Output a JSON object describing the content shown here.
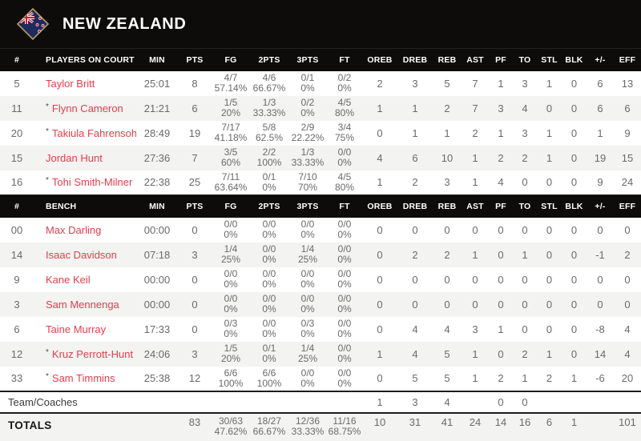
{
  "header": {
    "team_name": "NEW ZEALAND"
  },
  "marks": {
    "starter": "*"
  },
  "colors": {
    "header_bg": "#0d0c0a",
    "accent_red": "#e0404e",
    "row_alt": "#f3f3f1",
    "flag_navy": "#1f2a5e",
    "flag_gold": "#b89a57",
    "stat_gray": "#6a6a6a"
  },
  "columns": {
    "num": "#",
    "players_on_court": "PLAYERS ON COURT",
    "bench": "BENCH",
    "stats": [
      "MIN",
      "PTS",
      "FG",
      "2PTS",
      "3PTS",
      "FT",
      "OREB",
      "DREB",
      "REB",
      "AST",
      "PF",
      "TO",
      "STL",
      "BLK",
      "+/-",
      "EFF"
    ]
  },
  "on_court": [
    {
      "num": "5",
      "name": "Taylor Britt",
      "starter": false,
      "min": "25:01",
      "pts": "8",
      "fg": "4/7",
      "fg_pct": "57.14%",
      "p2": "4/6",
      "p2_pct": "66.67%",
      "p3": "0/1",
      "p3_pct": "0%",
      "ft": "0/2",
      "ft_pct": "0%",
      "oreb": "2",
      "dreb": "3",
      "reb": "5",
      "ast": "7",
      "pf": "1",
      "to": "3",
      "stl": "1",
      "blk": "0",
      "pm": "6",
      "eff": "13"
    },
    {
      "num": "11",
      "name": "Flynn Cameron",
      "starter": true,
      "min": "21:21",
      "pts": "6",
      "fg": "1/5",
      "fg_pct": "20%",
      "p2": "1/3",
      "p2_pct": "33.33%",
      "p3": "0/2",
      "p3_pct": "0%",
      "ft": "4/5",
      "ft_pct": "80%",
      "oreb": "1",
      "dreb": "1",
      "reb": "2",
      "ast": "7",
      "pf": "3",
      "to": "4",
      "stl": "0",
      "blk": "0",
      "pm": "6",
      "eff": "6"
    },
    {
      "num": "20",
      "name": "Takiula Fahrensohn",
      "starter": true,
      "min": "28:49",
      "pts": "19",
      "fg": "7/17",
      "fg_pct": "41.18%",
      "p2": "5/8",
      "p2_pct": "62.5%",
      "p3": "2/9",
      "p3_pct": "22.22%",
      "ft": "3/4",
      "ft_pct": "75%",
      "oreb": "0",
      "dreb": "1",
      "reb": "1",
      "ast": "2",
      "pf": "1",
      "to": "3",
      "stl": "1",
      "blk": "0",
      "pm": "1",
      "eff": "9"
    },
    {
      "num": "15",
      "name": "Jordan Hunt",
      "starter": false,
      "min": "27:36",
      "pts": "7",
      "fg": "3/5",
      "fg_pct": "60%",
      "p2": "2/2",
      "p2_pct": "100%",
      "p3": "1/3",
      "p3_pct": "33.33%",
      "ft": "0/0",
      "ft_pct": "0%",
      "oreb": "4",
      "dreb": "6",
      "reb": "10",
      "ast": "1",
      "pf": "2",
      "to": "2",
      "stl": "1",
      "blk": "0",
      "pm": "19",
      "eff": "15"
    },
    {
      "num": "16",
      "name": "Tohi Smith-Milner",
      "starter": true,
      "min": "22:38",
      "pts": "25",
      "fg": "7/11",
      "fg_pct": "63.64%",
      "p2": "0/1",
      "p2_pct": "0%",
      "p3": "7/10",
      "p3_pct": "70%",
      "ft": "4/5",
      "ft_pct": "80%",
      "oreb": "1",
      "dreb": "2",
      "reb": "3",
      "ast": "1",
      "pf": "4",
      "to": "0",
      "stl": "0",
      "blk": "0",
      "pm": "9",
      "eff": "24"
    }
  ],
  "bench": [
    {
      "num": "00",
      "name": "Max Darling",
      "starter": false,
      "min": "00:00",
      "pts": "0",
      "fg": "0/0",
      "fg_pct": "0%",
      "p2": "0/0",
      "p2_pct": "0%",
      "p3": "0/0",
      "p3_pct": "0%",
      "ft": "0/0",
      "ft_pct": "0%",
      "oreb": "0",
      "dreb": "0",
      "reb": "0",
      "ast": "0",
      "pf": "0",
      "to": "0",
      "stl": "0",
      "blk": "0",
      "pm": "0",
      "eff": "0"
    },
    {
      "num": "14",
      "name": "Isaac Davidson",
      "starter": false,
      "min": "07:18",
      "pts": "3",
      "fg": "1/4",
      "fg_pct": "25%",
      "p2": "0/0",
      "p2_pct": "0%",
      "p3": "1/4",
      "p3_pct": "25%",
      "ft": "0/0",
      "ft_pct": "0%",
      "oreb": "0",
      "dreb": "2",
      "reb": "2",
      "ast": "1",
      "pf": "0",
      "to": "1",
      "stl": "0",
      "blk": "0",
      "pm": "-1",
      "eff": "2"
    },
    {
      "num": "9",
      "name": "Kane Keil",
      "starter": false,
      "min": "00:00",
      "pts": "0",
      "fg": "0/0",
      "fg_pct": "0%",
      "p2": "0/0",
      "p2_pct": "0%",
      "p3": "0/0",
      "p3_pct": "0%",
      "ft": "0/0",
      "ft_pct": "0%",
      "oreb": "0",
      "dreb": "0",
      "reb": "0",
      "ast": "0",
      "pf": "0",
      "to": "0",
      "stl": "0",
      "blk": "0",
      "pm": "0",
      "eff": "0"
    },
    {
      "num": "3",
      "name": "Sam Mennenga",
      "starter": false,
      "min": "00:00",
      "pts": "0",
      "fg": "0/0",
      "fg_pct": "0%",
      "p2": "0/0",
      "p2_pct": "0%",
      "p3": "0/0",
      "p3_pct": "0%",
      "ft": "0/0",
      "ft_pct": "0%",
      "oreb": "0",
      "dreb": "0",
      "reb": "0",
      "ast": "0",
      "pf": "0",
      "to": "0",
      "stl": "0",
      "blk": "0",
      "pm": "0",
      "eff": "0"
    },
    {
      "num": "6",
      "name": "Taine Murray",
      "starter": false,
      "min": "17:33",
      "pts": "0",
      "fg": "0/3",
      "fg_pct": "0%",
      "p2": "0/0",
      "p2_pct": "0%",
      "p3": "0/3",
      "p3_pct": "0%",
      "ft": "0/0",
      "ft_pct": "0%",
      "oreb": "0",
      "dreb": "4",
      "reb": "4",
      "ast": "3",
      "pf": "1",
      "to": "0",
      "stl": "0",
      "blk": "0",
      "pm": "-8",
      "eff": "4"
    },
    {
      "num": "12",
      "name": "Kruz Perrott-Hunt",
      "starter": true,
      "min": "24:06",
      "pts": "3",
      "fg": "1/5",
      "fg_pct": "20%",
      "p2": "0/1",
      "p2_pct": "0%",
      "p3": "1/4",
      "p3_pct": "25%",
      "ft": "0/0",
      "ft_pct": "0%",
      "oreb": "1",
      "dreb": "4",
      "reb": "5",
      "ast": "1",
      "pf": "0",
      "to": "2",
      "stl": "1",
      "blk": "0",
      "pm": "14",
      "eff": "4"
    },
    {
      "num": "33",
      "name": "Sam Timmins",
      "starter": true,
      "min": "25:38",
      "pts": "12",
      "fg": "6/6",
      "fg_pct": "100%",
      "p2": "6/6",
      "p2_pct": "100%",
      "p3": "0/0",
      "p3_pct": "0%",
      "ft": "0/0",
      "ft_pct": "0%",
      "oreb": "0",
      "dreb": "5",
      "reb": "5",
      "ast": "1",
      "pf": "2",
      "to": "1",
      "stl": "2",
      "blk": "1",
      "pm": "-6",
      "eff": "20"
    }
  ],
  "team_coaches": {
    "label": "Team/Coaches",
    "oreb": "1",
    "dreb": "3",
    "reb": "4",
    "pf": "0",
    "to": "0"
  },
  "totals": {
    "label": "TOTALS",
    "pts": "83",
    "fg": "30/63",
    "fg_pct": "47.62%",
    "p2": "18/27",
    "p2_pct": "66.67%",
    "p3": "12/36",
    "p3_pct": "33.33%",
    "ft": "11/16",
    "ft_pct": "68.75%",
    "oreb": "10",
    "dreb": "31",
    "reb": "41",
    "ast": "24",
    "pf": "14",
    "to": "16",
    "stl": "6",
    "blk": "1",
    "pm": "",
    "eff": "101"
  }
}
